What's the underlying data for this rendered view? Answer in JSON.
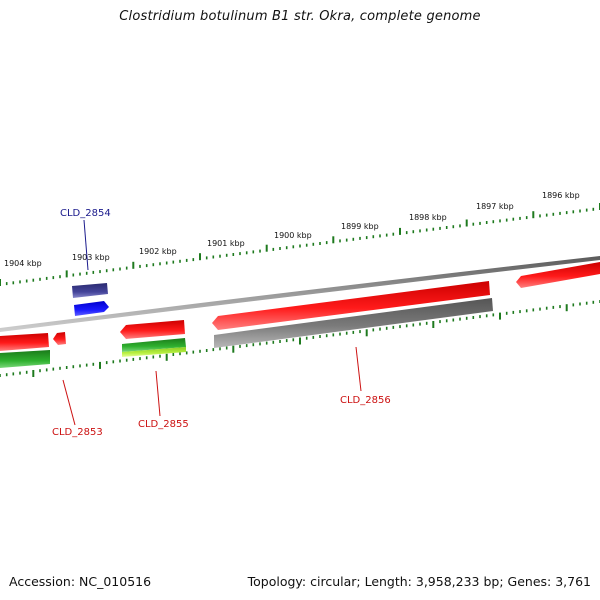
{
  "title": "Clostridium botulinum B1 str. Okra, complete genome",
  "footer": {
    "accession": "Accession: NC_010516",
    "summary": "Topology: circular; Length: 3,958,233 bp; Genes: 3,761"
  },
  "scale_labels": [
    "1904 kbp",
    "1903 kbp",
    "1902 kbp",
    "1901 kbp",
    "1900 kbp",
    "1899 kbp",
    "1898 kbp",
    "1897 kbp",
    "1896 kbp"
  ],
  "gene_labels": [
    {
      "id": "cld2854",
      "text": "CLD_2854",
      "color": "#1a1a8c"
    },
    {
      "id": "cld2853",
      "text": "CLD_2853",
      "color": "#cc1111"
    },
    {
      "id": "cld2855",
      "text": "CLD_2855",
      "color": "#cc1111"
    },
    {
      "id": "cld2856",
      "text": "CLD_2856",
      "color": "#cc1111"
    }
  ],
  "colors": {
    "backbone": "#888888",
    "tick": "#1e7a1e",
    "gene_red": "#ff0000",
    "gene_navy": "#3a3a8a",
    "gene_blue": "#0000ff",
    "gene_gray": "#666666",
    "gene_green": "#2a9a2a",
    "gene_lime": "#aaee33"
  }
}
